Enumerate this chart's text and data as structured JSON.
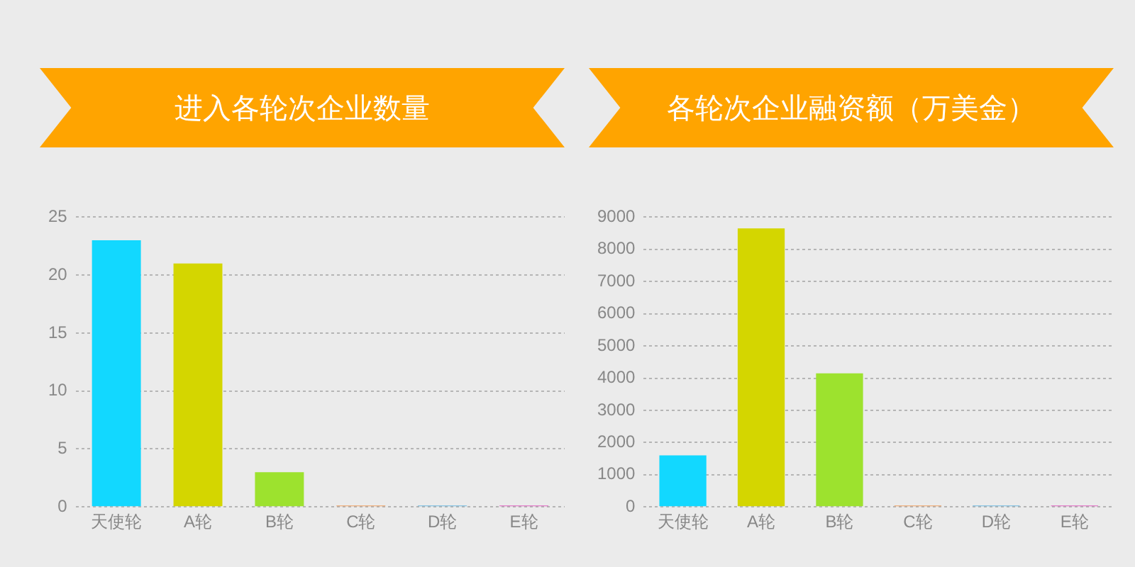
{
  "chart_data": [
    {
      "type": "bar",
      "title": "进入各轮次企业数量",
      "categories": [
        "天使轮",
        "A轮",
        "B轮",
        "C轮",
        "D轮",
        "E轮"
      ],
      "values": [
        23,
        21,
        3,
        0,
        0,
        0
      ],
      "colors": [
        "#12d8ff",
        "#d4d600",
        "#9de22e",
        "#f0a060",
        "#6cb8e0",
        "#e060c0"
      ],
      "ylim": [
        0,
        25
      ],
      "yticks": [
        0,
        5,
        10,
        15,
        20,
        25
      ],
      "grid": "y"
    },
    {
      "type": "bar",
      "title": "各轮次企业融资额（万美金）",
      "categories": [
        "天使轮",
        "A轮",
        "B轮",
        "C轮",
        "D轮",
        "E轮"
      ],
      "values": [
        1600,
        8650,
        4150,
        0,
        0,
        0
      ],
      "colors": [
        "#12d8ff",
        "#d4d600",
        "#9de22e",
        "#f0a060",
        "#6cb8e0",
        "#e060c0"
      ],
      "ylim": [
        0,
        9000
      ],
      "yticks": [
        0,
        1000,
        2000,
        3000,
        4000,
        5000,
        6000,
        7000,
        8000,
        9000
      ],
      "grid": "y"
    }
  ]
}
